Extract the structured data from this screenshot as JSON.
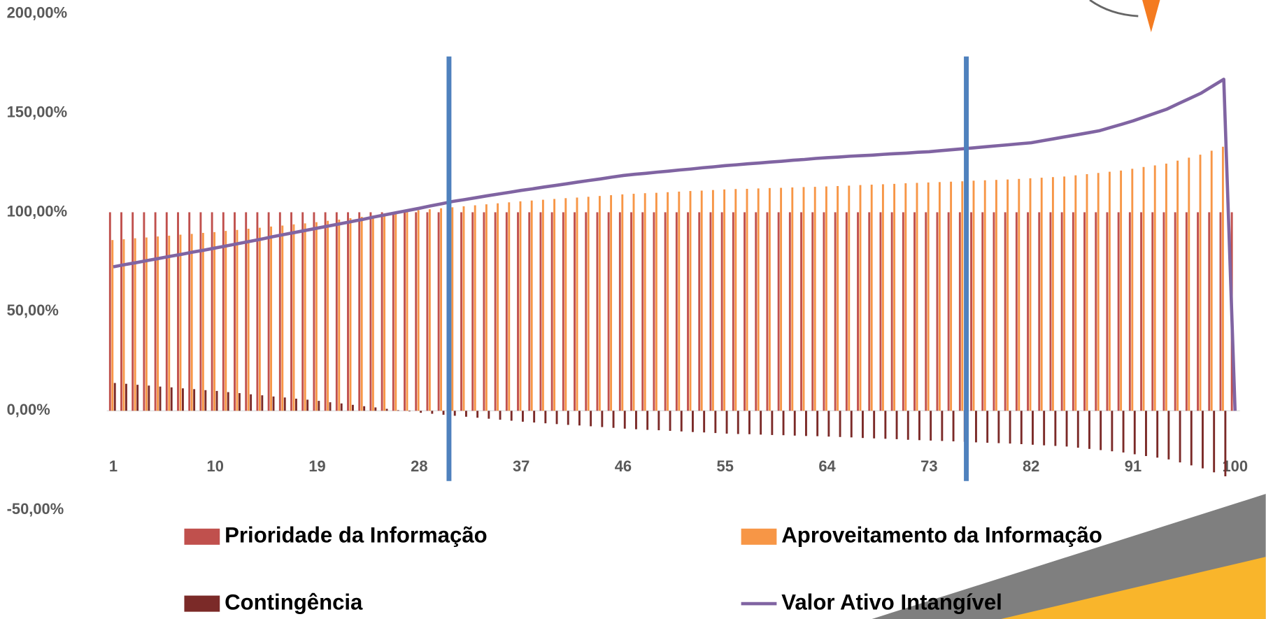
{
  "chart_data": {
    "type": "bar",
    "categories": [
      "1",
      null,
      null,
      null,
      null,
      null,
      null,
      null,
      null,
      "10",
      null,
      null,
      null,
      null,
      null,
      null,
      null,
      null,
      "19",
      null,
      null,
      null,
      null,
      null,
      null,
      null,
      null,
      "28",
      null,
      null,
      null,
      null,
      null,
      null,
      null,
      null,
      "37",
      null,
      null,
      null,
      null,
      null,
      null,
      null,
      null,
      "46",
      null,
      null,
      null,
      null,
      null,
      null,
      null,
      null,
      "55",
      null,
      null,
      null,
      null,
      null,
      null,
      null,
      null,
      "64",
      null,
      null,
      null,
      null,
      null,
      null,
      null,
      null,
      "73",
      null,
      null,
      null,
      null,
      null,
      null,
      null,
      null,
      "82",
      null,
      null,
      null,
      null,
      null,
      null,
      null,
      null,
      "91",
      null,
      null,
      null,
      null,
      null,
      null,
      null,
      null,
      "100"
    ],
    "series": [
      {
        "name": "Prioridade da Informação",
        "color": "#c0504d",
        "values": [
          100,
          100,
          100,
          100,
          100,
          100,
          100,
          100,
          100,
          100,
          100,
          100,
          100,
          100,
          100,
          100,
          100,
          100,
          100,
          100,
          100,
          100,
          100,
          100,
          100,
          100,
          100,
          100,
          100,
          100,
          100,
          100,
          100,
          100,
          100,
          100,
          100,
          100,
          100,
          100,
          100,
          100,
          100,
          100,
          100,
          100,
          100,
          100,
          100,
          100,
          100,
          100,
          100,
          100,
          100,
          100,
          100,
          100,
          100,
          100,
          100,
          100,
          100,
          100,
          100,
          100,
          100,
          100,
          100,
          100,
          100,
          100,
          100,
          100,
          100,
          100,
          100,
          100,
          100,
          100,
          100,
          100,
          100,
          100,
          100,
          100,
          100,
          100,
          100,
          100,
          100,
          100,
          100,
          100,
          100,
          100,
          100,
          100,
          100,
          100
        ]
      },
      {
        "name": "Aproveitamento da Informação",
        "color": "#f79646",
        "values": [
          86,
          86.4,
          86.9,
          87.3,
          87.8,
          88.2,
          88.7,
          89.1,
          89.6,
          90,
          90.6,
          91.1,
          91.7,
          92.2,
          92.8,
          93.3,
          93.9,
          94.4,
          95,
          95.7,
          96.3,
          97,
          97.7,
          98.3,
          99,
          99.7,
          100.3,
          101,
          101.5,
          102,
          102.5,
          103,
          103.5,
          104,
          104.5,
          105,
          105.5,
          105.9,
          106.3,
          106.7,
          107.1,
          107.4,
          107.8,
          108.2,
          108.6,
          109,
          109.3,
          109.6,
          109.8,
          110.1,
          110.4,
          110.7,
          110.9,
          111.2,
          111.5,
          111.7,
          111.8,
          112,
          112.2,
          112.3,
          112.5,
          112.7,
          112.8,
          113,
          113.2,
          113.4,
          113.7,
          113.9,
          114.1,
          114.3,
          114.6,
          114.8,
          115,
          115.2,
          115.4,
          115.6,
          115.9,
          116.1,
          116.3,
          116.5,
          116.8,
          117.1,
          117.4,
          117.7,
          118,
          118.6,
          119.2,
          119.8,
          120.4,
          121,
          121.9,
          122.8,
          123.6,
          124.5,
          126,
          127.5,
          129,
          131,
          133,
          null
        ]
      },
      {
        "name": "Contingência",
        "color": "#7b2a28",
        "values": [
          14,
          13.6,
          13.1,
          12.7,
          12.2,
          11.8,
          11.3,
          10.9,
          10.4,
          10,
          9.4,
          8.9,
          8.3,
          7.8,
          7.2,
          6.7,
          6.1,
          5.6,
          5,
          4.3,
          3.7,
          3,
          2.3,
          1.7,
          1,
          0.3,
          -0.3,
          -1,
          -1.5,
          -2,
          -2.5,
          -3,
          -3.5,
          -4,
          -4.5,
          -5,
          -5.5,
          -5.9,
          -6.3,
          -6.7,
          -7.1,
          -7.4,
          -7.8,
          -8.2,
          -8.6,
          -9,
          -9.3,
          -9.6,
          -9.8,
          -10.1,
          -10.4,
          -10.7,
          -10.9,
          -11.2,
          -11.5,
          -11.7,
          -11.8,
          -12,
          -12.2,
          -12.3,
          -12.5,
          -12.7,
          -12.8,
          -13,
          -13.2,
          -13.4,
          -13.7,
          -13.9,
          -14.1,
          -14.3,
          -14.6,
          -14.8,
          -15,
          -15.2,
          -15.4,
          -15.6,
          -15.9,
          -16.1,
          -16.3,
          -16.5,
          -16.8,
          -17.1,
          -17.4,
          -17.7,
          -18,
          -18.6,
          -19.2,
          -19.8,
          -20.4,
          -21,
          -21.9,
          -22.8,
          -23.6,
          -24.5,
          -26,
          -27.5,
          -29,
          -31,
          -33,
          null
        ]
      },
      {
        "name": "Valor Ativo Intangível",
        "color": "#8064a2",
        "type": "line",
        "values": [
          72.5,
          73.6,
          74.6,
          75.7,
          76.7,
          77.8,
          78.8,
          79.9,
          80.9,
          82,
          83.1,
          84.2,
          85.3,
          86.4,
          87.6,
          88.7,
          89.8,
          90.9,
          92,
          93.1,
          94.2,
          95.3,
          96.4,
          97.6,
          98.7,
          99.8,
          100.9,
          102,
          103.2,
          104.3,
          105.5,
          106.4,
          107.3,
          108.3,
          109.2,
          110.1,
          111,
          111.8,
          112.7,
          113.5,
          114.3,
          115.2,
          116,
          116.8,
          117.7,
          118.5,
          119.1,
          119.6,
          120.2,
          120.7,
          121.3,
          121.8,
          122.4,
          122.9,
          123.5,
          123.9,
          124.4,
          124.8,
          125.3,
          125.7,
          126.2,
          126.6,
          127.1,
          127.5,
          127.8,
          128.2,
          128.5,
          128.8,
          129.2,
          129.5,
          129.8,
          130.2,
          130.5,
          131,
          131.5,
          132,
          132.5,
          133,
          133.5,
          134,
          134.5,
          135,
          136,
          137,
          138,
          139,
          140,
          141,
          142.7,
          144.3,
          146,
          148,
          150,
          152,
          154.7,
          157.3,
          160,
          163.5,
          167,
          0
        ]
      }
    ],
    "ylim": [
      -50,
      200
    ],
    "yticks": [
      {
        "value": -50,
        "label": "-50,00%"
      },
      {
        "value": 0,
        "label": "0,00%"
      },
      {
        "value": 50,
        "label": "50,00%"
      },
      {
        "value": 100,
        "label": "100,00%"
      },
      {
        "value": 150,
        "label": "150,00%"
      },
      {
        "value": 200,
        "label": "200,00%"
      }
    ],
    "grid": false
  }
}
